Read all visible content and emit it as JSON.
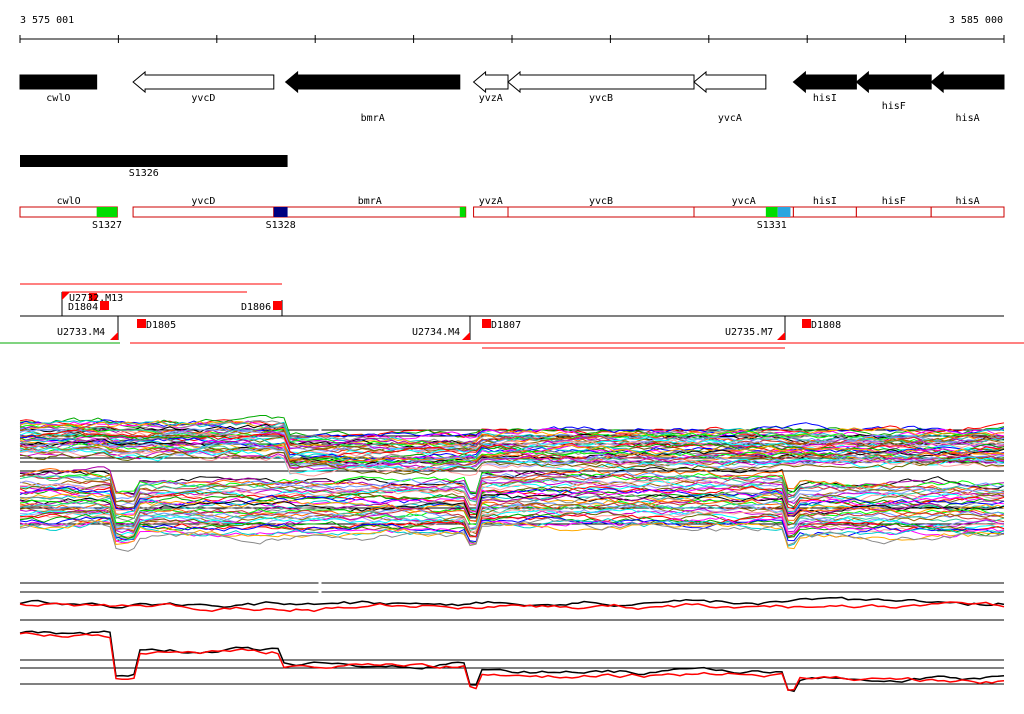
{
  "ruler": {
    "start_label": "3 575 001",
    "end_label": "3 585 000",
    "start_bp": 3575001,
    "end_bp": 3585000
  },
  "colors": {
    "gene_fill_forward": "#000000",
    "gene_fill_reverse": "#ffffff",
    "segment_outline": "#cc0000",
    "marker_red": "#ff0000",
    "green": "#00dd00",
    "navy": "#000080",
    "blue": "#2aa6e0",
    "line_red": "#ff0000"
  },
  "genes": [
    {
      "name": "cwlO",
      "label": "cwlO",
      "start": 3575001,
      "end": 3575780,
      "strand": "+",
      "label_row": "upper"
    },
    {
      "name": "yvcD",
      "label": "yvcD",
      "start": 3576150,
      "end": 3577580,
      "strand": "-",
      "label_row": "upper"
    },
    {
      "name": "bmrA",
      "label": "bmrA",
      "start": 3577700,
      "end": 3579470,
      "strand": "-",
      "label_row": "lower"
    },
    {
      "name": "yvzA",
      "label": "yvzA",
      "start": 3579610,
      "end": 3579960,
      "strand": "-",
      "label_row": "upper"
    },
    {
      "name": "yvcB",
      "label": "yvcB",
      "start": 3579960,
      "end": 3581850,
      "strand": "-",
      "label_row": "upper"
    },
    {
      "name": "yvcA",
      "label": "yvcA",
      "start": 3581850,
      "end": 3582580,
      "strand": "-",
      "label_row": "lower"
    },
    {
      "name": "hisI",
      "label": "hisI",
      "start": 3582860,
      "end": 3583500,
      "strand": "-",
      "label_row": "upper"
    },
    {
      "name": "hisF",
      "label": "hisF",
      "start": 3583500,
      "end": 3584260,
      "strand": "-",
      "label_row": "mid"
    },
    {
      "name": "hisA",
      "label": "hisA",
      "start": 3584260,
      "end": 3585000,
      "strand": "-",
      "label_row": "lower"
    }
  ],
  "long_feature": {
    "label": "S1326",
    "start": 3575001,
    "end": 3577720
  },
  "segments": {
    "items": [
      {
        "label": "cwlO",
        "start": 3575001,
        "end": 3575990
      },
      {
        "label": "yvcD",
        "start": 3576150,
        "end": 3577580
      },
      {
        "label": "bmrA",
        "start": 3577580,
        "end": 3579530
      },
      {
        "label": "yvzA",
        "start": 3579610,
        "end": 3579960
      },
      {
        "label": "yvcB",
        "start": 3579960,
        "end": 3581850
      },
      {
        "label": "yvcA",
        "start": 3581850,
        "end": 3582860
      },
      {
        "label": "hisI",
        "start": 3582860,
        "end": 3583500
      },
      {
        "label": "hisF",
        "start": 3583500,
        "end": 3584260
      },
      {
        "label": "hisA",
        "start": 3584260,
        "end": 3585000
      }
    ],
    "markers": [
      {
        "label": "S1327",
        "start": 3575780,
        "end": 3575990,
        "color": "green"
      },
      {
        "label": "S1328",
        "start": 3577580,
        "end": 3577720,
        "color": "navy"
      },
      {
        "label": "",
        "start": 3579470,
        "end": 3579530,
        "color": "green"
      },
      {
        "label": "S1331",
        "start": 3582580,
        "end": 3582700,
        "color": "green"
      },
      {
        "label": "",
        "start": 3582700,
        "end": 3582830,
        "color": "blue"
      }
    ]
  },
  "regulatory": {
    "top_labels": [
      {
        "label": "U2732.M13",
        "bp": 3575480
      },
      {
        "label": "D1804",
        "bp": 3575480
      },
      {
        "label": "D1806",
        "bp": 3577650
      }
    ],
    "bottom_labels": [
      {
        "label": "U2733.M4",
        "bp": 3575960
      },
      {
        "label": "D1805",
        "bp": 3576250
      },
      {
        "label": "U2734.M4",
        "bp": 3579530
      },
      {
        "label": "D1807",
        "bp": 3579650
      },
      {
        "label": "U2735.M7",
        "bp": 3582710
      },
      {
        "label": "D1808",
        "bp": 3582830
      }
    ]
  },
  "expression": {
    "upper_panel": {
      "series_count": 40
    },
    "lower_panel": {
      "series_count": 2
    }
  }
}
